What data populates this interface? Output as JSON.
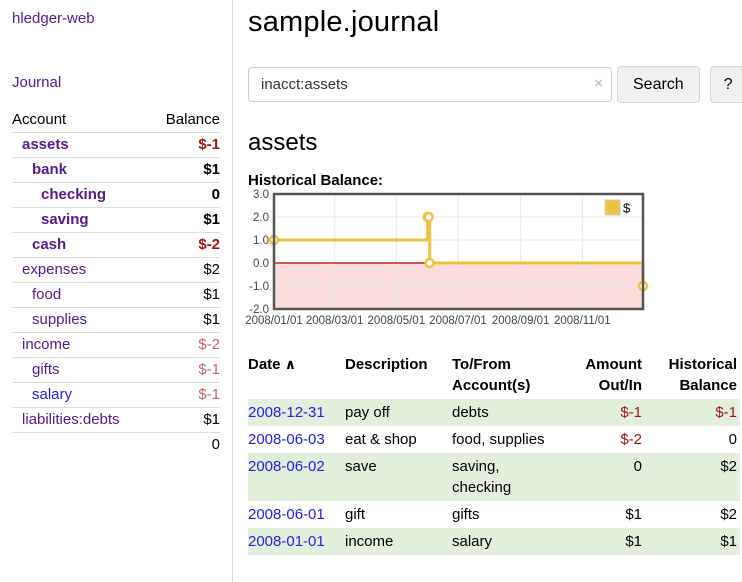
{
  "app": {
    "brand": "hledger-web"
  },
  "nav": {
    "journal": "Journal"
  },
  "sidebar": {
    "headers": {
      "account": "Account",
      "balance": "Balance"
    },
    "accounts": [
      {
        "name": "assets",
        "balance": "$-1"
      },
      {
        "name": "bank",
        "balance": "$1"
      },
      {
        "name": "checking",
        "balance": "0"
      },
      {
        "name": "saving",
        "balance": "$1"
      },
      {
        "name": "cash",
        "balance": "$-2"
      },
      {
        "name": "expenses",
        "balance": "$2"
      },
      {
        "name": "food",
        "balance": "$1"
      },
      {
        "name": "supplies",
        "balance": "$1"
      },
      {
        "name": "income",
        "balance": "$-2"
      },
      {
        "name": "gifts",
        "balance": "$-1"
      },
      {
        "name": "salary",
        "balance": "$-1"
      },
      {
        "name": "liabilities:debts",
        "balance": "$1"
      }
    ],
    "total": "0"
  },
  "header": {
    "title": "sample.journal"
  },
  "search": {
    "value": "inacct:assets",
    "clear_icon": "×",
    "search_button": "Search",
    "help_button": "?"
  },
  "account_page": {
    "heading": "assets",
    "chart_title": "Historical Balance:"
  },
  "chart_data": {
    "type": "line",
    "step": true,
    "title": "Historical Balance of assets",
    "series": [
      {
        "name": "$",
        "color": "#edc240",
        "points": [
          [
            "2008-01-01",
            1
          ],
          [
            "2008-06-01",
            2
          ],
          [
            "2008-06-02",
            2
          ],
          [
            "2008-06-03",
            0
          ],
          [
            "2008-12-31",
            -1
          ]
        ]
      }
    ],
    "x_range": [
      "2008-01-01",
      "2008-12-31"
    ],
    "y_range": [
      -2,
      3
    ],
    "y_ticks": [
      3.0,
      2.0,
      1.0,
      0.0,
      -1.0,
      -2.0
    ],
    "x_ticks": [
      "2008/01/01",
      "2008/03/01",
      "2008/05/01",
      "2008/07/01",
      "2008/09/01",
      "2008/11/01"
    ],
    "legend": {
      "label": "$",
      "position": "top-right"
    },
    "grid": true,
    "colors": {
      "negative_region_fill": "#fbdcdc",
      "zero_line": "#aa0000",
      "gridline": "#e8e8e8",
      "border": "#545454",
      "tick_text": "#444444"
    }
  },
  "register": {
    "headers": {
      "date": "Date",
      "sort_icon": "∧",
      "description": "Description",
      "accounts": "To/From Account(s)",
      "amount": "Amount Out/In",
      "balance": "Historical Balance"
    },
    "rows": [
      {
        "date": "2008-12-31",
        "description": "pay off",
        "accounts": "debts",
        "amount": "$-1",
        "balance": "$-1"
      },
      {
        "date": "2008-06-03",
        "description": "eat & shop",
        "accounts": "food, supplies",
        "amount": "$-2",
        "balance": "0"
      },
      {
        "date": "2008-06-02",
        "description": "save",
        "accounts": "saving, checking",
        "amount": "0",
        "balance": "$2"
      },
      {
        "date": "2008-06-01",
        "description": "gift",
        "accounts": "gifts",
        "amount": "$1",
        "balance": "$2"
      },
      {
        "date": "2008-01-01",
        "description": "income",
        "accounts": "salary",
        "amount": "$1",
        "balance": "$1"
      }
    ]
  }
}
